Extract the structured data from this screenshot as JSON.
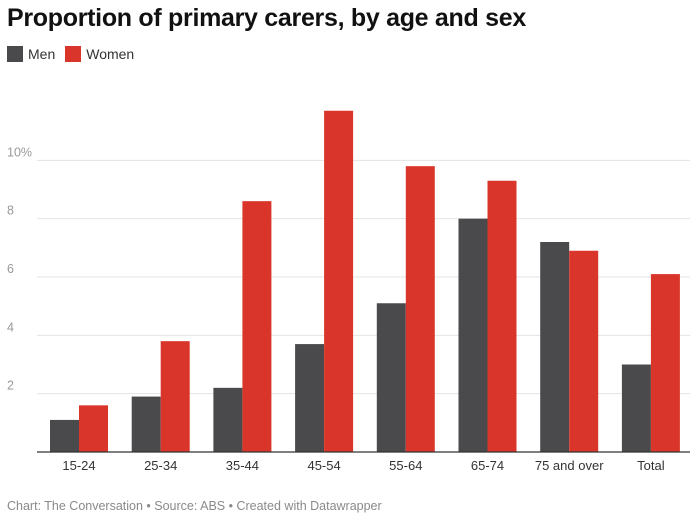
{
  "colors": {
    "men": "#4a4a4c",
    "women": "#d9352a",
    "grid": "#e3e3e3",
    "axis": "#333333",
    "ytick": "#9a9a9a"
  },
  "chart_data": {
    "type": "bar",
    "title": "Proportion of primary carers, by age and sex",
    "xlabel": "",
    "ylabel": "",
    "categories": [
      "15-24",
      "25-34",
      "35-44",
      "45-54",
      "55-64",
      "65-74",
      "75 and over",
      "Total"
    ],
    "series": [
      {
        "name": "Men",
        "values": [
          1.1,
          1.9,
          2.2,
          3.7,
          5.1,
          8.0,
          7.2,
          3.0
        ]
      },
      {
        "name": "Women",
        "values": [
          1.6,
          3.8,
          8.6,
          11.7,
          9.8,
          9.3,
          6.9,
          6.1
        ]
      }
    ],
    "ylim": [
      0,
      12
    ],
    "yticks": [
      {
        "value": 2,
        "label": "2"
      },
      {
        "value": 4,
        "label": "4"
      },
      {
        "value": 6,
        "label": "6"
      },
      {
        "value": 8,
        "label": "8"
      },
      {
        "value": 10,
        "label": "10%"
      }
    ],
    "grid": true,
    "legend_position": "top-left"
  },
  "footer": "Chart: The Conversation • Source: ABS • Created with Datawrapper"
}
